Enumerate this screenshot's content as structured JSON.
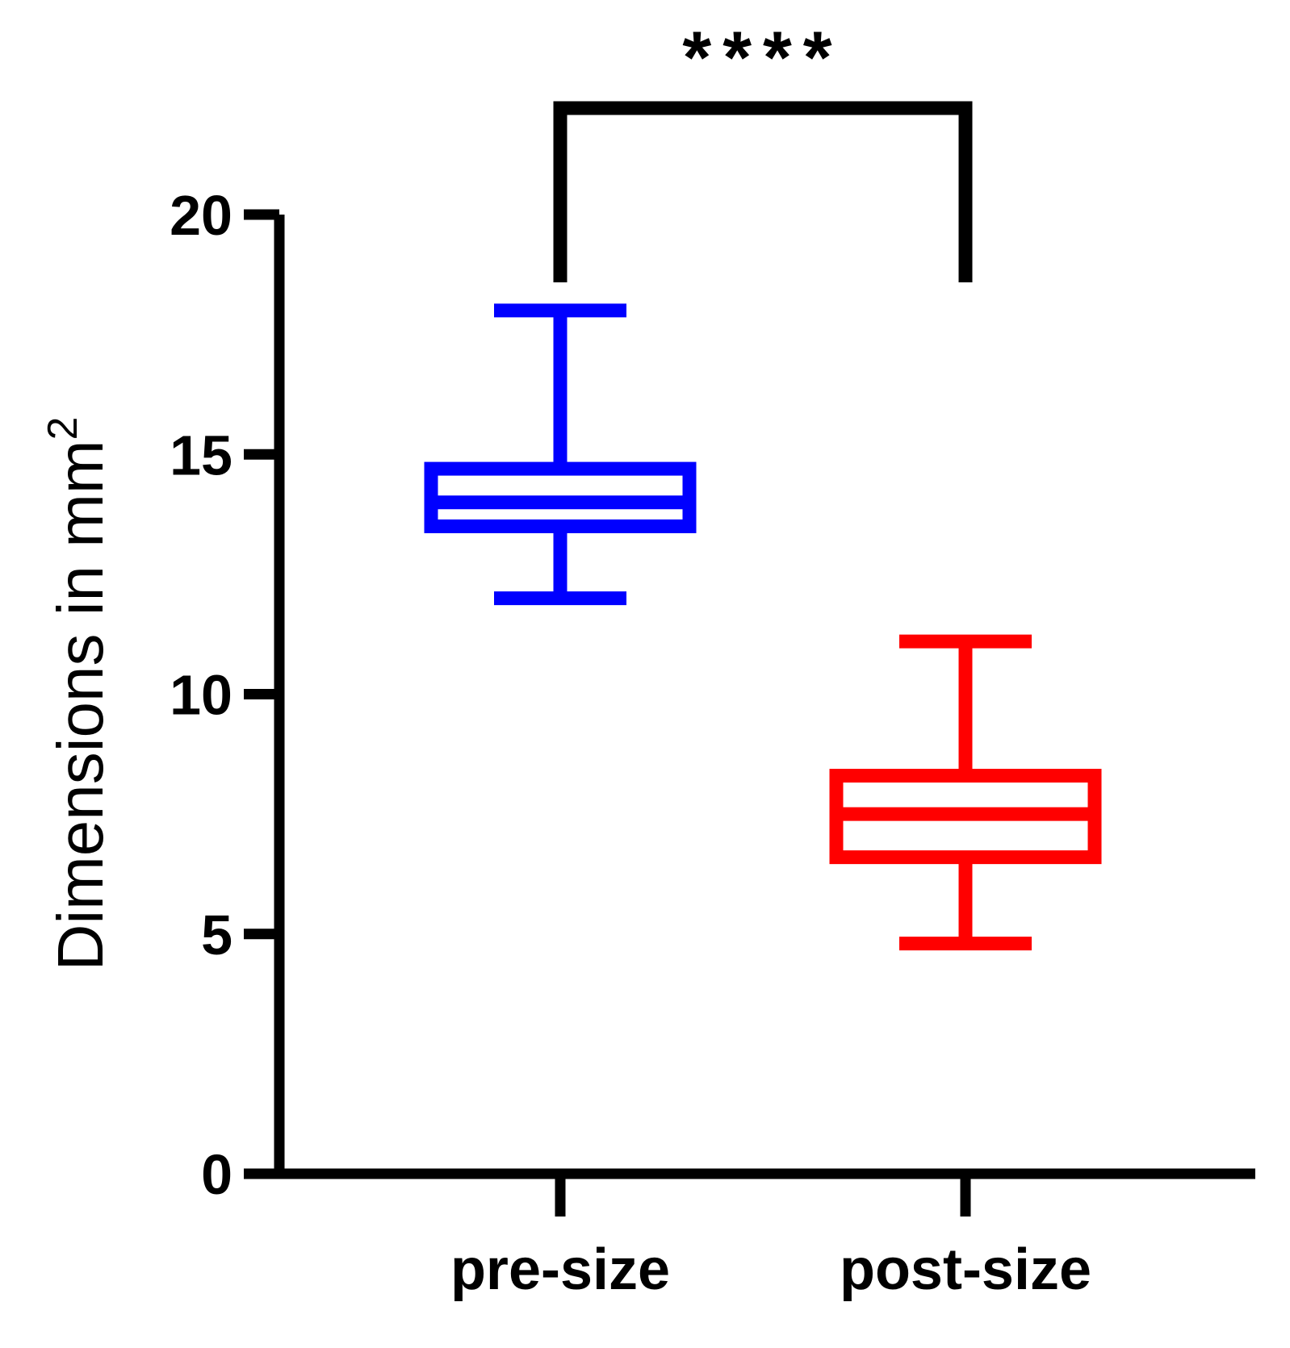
{
  "chart_data": {
    "type": "box",
    "ylabel": "Dimensions in mm",
    "ylabel_superscript": "2",
    "ylim": [
      0,
      20
    ],
    "yticks": [
      "0",
      "5",
      "10",
      "15",
      "20"
    ],
    "categories": [
      "pre-size",
      "post-size"
    ],
    "series": [
      {
        "category": "pre-size",
        "color": "#0000ff",
        "min": 12.0,
        "q1": 13.5,
        "median": 14.0,
        "q3": 14.7,
        "max": 18.0
      },
      {
        "category": "post-size",
        "color": "#ff0000",
        "min": 4.8,
        "q1": 6.6,
        "median": 7.5,
        "q3": 8.3,
        "max": 11.1
      }
    ],
    "significance": {
      "label": "****",
      "between": [
        "pre-size",
        "post-size"
      ]
    },
    "grid": false
  }
}
